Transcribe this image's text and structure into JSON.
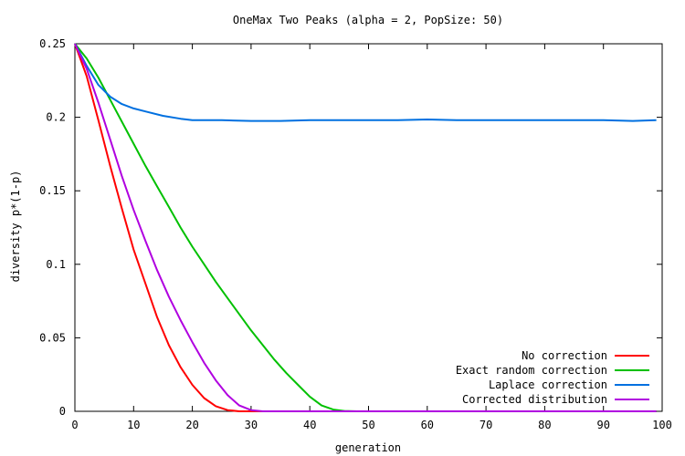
{
  "chart_data": {
    "type": "line",
    "title": "OneMax Two Peaks (alpha = 2, PopSize: 50)",
    "xlabel": "generation",
    "ylabel": "diversity p*(1-p)",
    "xlim": [
      0,
      100
    ],
    "ylim": [
      0,
      0.25
    ],
    "x_ticks": [
      0,
      10,
      20,
      30,
      40,
      50,
      60,
      70,
      80,
      90,
      100
    ],
    "y_ticks": [
      0,
      0.05,
      0.1,
      0.15,
      0.2,
      0.25
    ],
    "x_tick_labels": [
      "0",
      "10",
      "20",
      "30",
      "40",
      "50",
      "60",
      "70",
      "80",
      "90",
      "100"
    ],
    "y_tick_labels": [
      "0",
      "0.05",
      "0.1",
      "0.15",
      "0.2",
      "0.25"
    ],
    "grid": false,
    "legend": "bottom-right",
    "series": [
      {
        "name": "No correction",
        "color": "#ff0000",
        "x": [
          0,
          2,
          4,
          6,
          8,
          10,
          12,
          14,
          16,
          18,
          20,
          22,
          24,
          26,
          28,
          99
        ],
        "y": [
          0.25,
          0.228,
          0.198,
          0.167,
          0.138,
          0.11,
          0.087,
          0.064,
          0.045,
          0.03,
          0.018,
          0.009,
          0.0035,
          0.0008,
          0,
          0
        ]
      },
      {
        "name": "Exact random correction",
        "color": "#00c000",
        "x": [
          0,
          2,
          4,
          6,
          8,
          10,
          12,
          14,
          16,
          18,
          20,
          22,
          24,
          26,
          28,
          30,
          32,
          34,
          36,
          38,
          40,
          42,
          44,
          46,
          48,
          99
        ],
        "y": [
          0.25,
          0.24,
          0.227,
          0.212,
          0.197,
          0.182,
          0.167,
          0.153,
          0.139,
          0.125,
          0.112,
          0.1,
          0.088,
          0.077,
          0.066,
          0.055,
          0.045,
          0.035,
          0.026,
          0.018,
          0.01,
          0.004,
          0.0012,
          0.0002,
          0,
          0
        ]
      },
      {
        "name": "Laplace correction",
        "color": "#0070e0",
        "x": [
          0,
          2,
          4,
          6,
          8,
          10,
          12,
          15,
          18,
          20,
          25,
          30,
          35,
          40,
          45,
          50,
          55,
          60,
          65,
          70,
          75,
          80,
          85,
          90,
          95,
          99
        ],
        "y": [
          0.25,
          0.235,
          0.222,
          0.214,
          0.209,
          0.206,
          0.204,
          0.201,
          0.199,
          0.198,
          0.198,
          0.1975,
          0.1975,
          0.198,
          0.198,
          0.198,
          0.198,
          0.1985,
          0.198,
          0.198,
          0.198,
          0.198,
          0.198,
          0.198,
          0.1975,
          0.198
        ]
      },
      {
        "name": "Corrected distribution",
        "color": "#b000e0",
        "x": [
          0,
          2,
          4,
          6,
          8,
          10,
          12,
          14,
          16,
          18,
          20,
          22,
          24,
          26,
          28,
          30,
          32,
          34,
          99
        ],
        "y": [
          0.25,
          0.233,
          0.21,
          0.185,
          0.16,
          0.137,
          0.116,
          0.096,
          0.078,
          0.062,
          0.047,
          0.033,
          0.021,
          0.011,
          0.004,
          0.0008,
          0,
          0,
          0
        ]
      }
    ]
  }
}
